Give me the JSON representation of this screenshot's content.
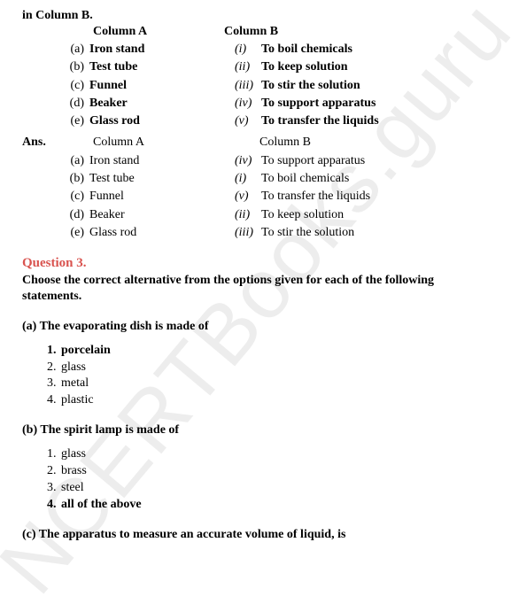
{
  "watermark": "NCERTBooks.guru",
  "intro": "in Column B.",
  "colA_header": "Column A",
  "colB_header": "Column B",
  "q_rows": [
    {
      "la": "(a)",
      "lt": "Iron stand",
      "ra": "(i)",
      "rt": "To boil chemicals"
    },
    {
      "la": "(b)",
      "lt": "Test tube",
      "ra": "(ii)",
      "rt": "To keep solution"
    },
    {
      "la": "(c)",
      "lt": "Funnel",
      "ra": "(iii)",
      "rt": "To stir the solution"
    },
    {
      "la": "(d)",
      "lt": "Beaker",
      "ra": "(iv)",
      "rt": "To support apparatus"
    },
    {
      "la": "(e)",
      "lt": "Glass rod",
      "ra": "(v)",
      "rt": "To transfer the liquids"
    }
  ],
  "ans_label": "Ans.",
  "ans_rows": [
    {
      "la": "(a)",
      "lt": "Iron stand",
      "ra": "(iv)",
      "rt": "To support apparatus"
    },
    {
      "la": "(b)",
      "lt": "Test tube",
      "ra": "(i)",
      "rt": "To boil chemicals"
    },
    {
      "la": "(c)",
      "lt": "Funnel",
      "ra": "(v)",
      "rt": "To transfer the liquids"
    },
    {
      "la": "(d)",
      "lt": "Beaker",
      "ra": "(ii)",
      "rt": "To keep solution"
    },
    {
      "la": "(e)",
      "lt": "Glass rod",
      "ra": "(iii)",
      "rt": "To stir the solution"
    }
  ],
  "q3_title": "Question 3.",
  "q3_text": "Choose the correct alternative from the options given for each of the following statements.",
  "sub_a": "(a) The evaporating dish is made of",
  "opts_a": [
    {
      "n": "1.",
      "t": "porcelain",
      "bold": true
    },
    {
      "n": "2.",
      "t": "glass",
      "bold": false
    },
    {
      "n": "3.",
      "t": "metal",
      "bold": false
    },
    {
      "n": "4.",
      "t": "plastic",
      "bold": false
    }
  ],
  "sub_b": "(b) The spirit lamp is made of",
  "opts_b": [
    {
      "n": "1.",
      "t": "glass",
      "bold": false
    },
    {
      "n": "2.",
      "t": "brass",
      "bold": false
    },
    {
      "n": "3.",
      "t": "steel",
      "bold": false
    },
    {
      "n": "4.",
      "t": "all of the above",
      "bold": true
    }
  ],
  "sub_c": "(c) The apparatus to measure an accurate volume of liquid, is"
}
